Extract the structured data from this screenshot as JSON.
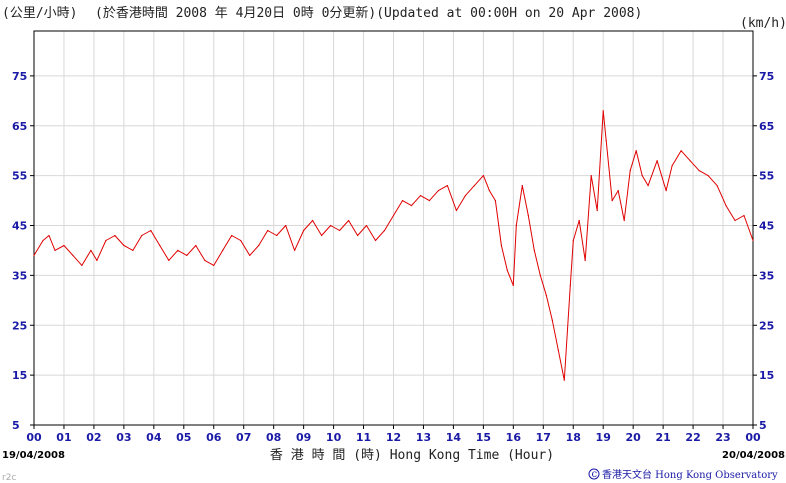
{
  "header": {
    "unit_left": "(公里/小時)",
    "title": "(於香港時間 2008 年 4月20日 0時 0分更新)(Updated at 00:00H on 20 Apr 2008)",
    "unit_right": "(km/h)"
  },
  "footer": {
    "date_start": "19/04/2008",
    "date_end": "20/04/2008",
    "axis_title": "香 港 時 間 (時) Hong Kong Time (Hour)",
    "credit": "香港天文台 Hong Kong Observatory",
    "corner_code": "r2c"
  },
  "colors": {
    "line": "#e00000",
    "tick_text": "#1a1aa6",
    "grid": "#d8d8d8"
  },
  "chart_data": {
    "type": "line",
    "xlabel": "香 港 時 間 (時) Hong Kong Time (Hour)",
    "ylabel": "(公里/小時)",
    "ylabel_right": "(km/h)",
    "x_ticks": [
      "00",
      "01",
      "02",
      "03",
      "04",
      "05",
      "06",
      "07",
      "08",
      "09",
      "10",
      "11",
      "12",
      "13",
      "14",
      "15",
      "16",
      "17",
      "18",
      "19",
      "20",
      "21",
      "22",
      "23",
      "00"
    ],
    "y_ticks": [
      5,
      15,
      25,
      35,
      45,
      55,
      65,
      75
    ],
    "xlim": [
      0,
      24
    ],
    "ylim": [
      5,
      84
    ],
    "grid": true,
    "series": [
      {
        "x": [
          0.0,
          0.3,
          0.5,
          0.7,
          1.0,
          1.3,
          1.6,
          1.9,
          2.1,
          2.4,
          2.7,
          3.0,
          3.3,
          3.6,
          3.9,
          4.2,
          4.5,
          4.8,
          5.1,
          5.4,
          5.7,
          6.0,
          6.3,
          6.6,
          6.9,
          7.2,
          7.5,
          7.8,
          8.1,
          8.4,
          8.7,
          9.0,
          9.3,
          9.6,
          9.9,
          10.2,
          10.5,
          10.8,
          11.1,
          11.4,
          11.7,
          12.0,
          12.3,
          12.6,
          12.9,
          13.2,
          13.5,
          13.8,
          14.1,
          14.4,
          14.7,
          15.0,
          15.2,
          15.4,
          15.6,
          15.8,
          16.0,
          16.1,
          16.3,
          16.5,
          16.7,
          16.9,
          17.1,
          17.3,
          17.5,
          17.7,
          17.9,
          18.0,
          18.2,
          18.4,
          18.6,
          18.8,
          19.0,
          19.1,
          19.3,
          19.5,
          19.7,
          19.9,
          20.1,
          20.3,
          20.5,
          20.8,
          21.1,
          21.3,
          21.6,
          21.9,
          22.2,
          22.5,
          22.8,
          23.1,
          23.4,
          23.7,
          24.0
        ],
        "values": [
          39,
          42,
          43,
          40,
          41,
          39,
          37,
          40,
          38,
          42,
          43,
          41,
          40,
          43,
          44,
          41,
          38,
          40,
          39,
          41,
          38,
          37,
          40,
          43,
          42,
          39,
          41,
          44,
          43,
          45,
          40,
          44,
          46,
          43,
          45,
          44,
          46,
          43,
          45,
          42,
          44,
          47,
          50,
          49,
          51,
          50,
          52,
          53,
          48,
          51,
          53,
          55,
          52,
          50,
          41,
          36,
          33,
          45,
          53,
          47,
          40,
          35,
          31,
          26,
          20,
          14,
          33,
          42,
          46,
          38,
          55,
          48,
          68,
          62,
          50,
          52,
          46,
          56,
          60,
          55,
          53,
          58,
          52,
          57,
          60,
          58,
          56,
          55,
          53,
          49,
          46,
          47,
          42
        ]
      }
    ]
  }
}
